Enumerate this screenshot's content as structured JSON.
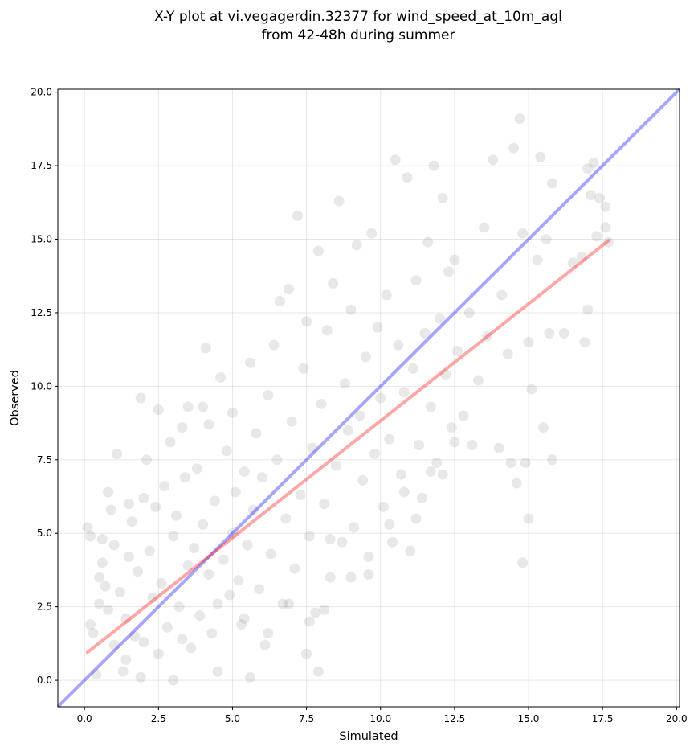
{
  "chart_data": {
    "type": "scatter",
    "title": "X-Y plot at vi.vegagerdin.32377 for wind_speed_at_10m_agl",
    "subtitle": "from 42-48h during summer",
    "xlabel": "Simulated",
    "ylabel": "Observed",
    "xlim": [
      -0.9,
      20.1
    ],
    "ylim": [
      -0.9,
      20.1
    ],
    "xticks": [
      "0.0",
      "2.5",
      "5.0",
      "7.5",
      "10.0",
      "12.5",
      "15.0",
      "17.5",
      "20.0"
    ],
    "yticks": [
      "0.0",
      "2.5",
      "5.0",
      "7.5",
      "10.0",
      "12.5",
      "15.0",
      "17.5",
      "20.0"
    ],
    "grid": true,
    "point_color": "#808080",
    "identity_line": {
      "color": "#0000ff",
      "from": [
        -0.9,
        -0.9
      ],
      "to": [
        20.1,
        20.1
      ]
    },
    "fit_line": {
      "color": "#ff0000",
      "from": [
        0.1,
        0.95
      ],
      "to": [
        17.7,
        14.95
      ]
    },
    "points": [
      [
        0.1,
        5.2
      ],
      [
        0.2,
        4.9
      ],
      [
        0.2,
        1.9
      ],
      [
        0.3,
        1.6
      ],
      [
        0.4,
        0.2
      ],
      [
        0.5,
        2.6
      ],
      [
        0.6,
        4.8
      ],
      [
        0.7,
        3.2
      ],
      [
        0.8,
        6.4
      ],
      [
        0.9,
        5.8
      ],
      [
        0.5,
        3.5
      ],
      [
        0.6,
        4.0
      ],
      [
        0.8,
        2.4
      ],
      [
        1.0,
        4.6
      ],
      [
        1.0,
        1.2
      ],
      [
        1.1,
        7.7
      ],
      [
        1.2,
        3.0
      ],
      [
        1.3,
        0.3
      ],
      [
        1.4,
        2.1
      ],
      [
        1.5,
        6.0
      ],
      [
        1.5,
        4.2
      ],
      [
        1.6,
        5.4
      ],
      [
        1.7,
        1.5
      ],
      [
        1.8,
        3.7
      ],
      [
        1.9,
        9.6
      ],
      [
        1.9,
        0.1
      ],
      [
        2.0,
        6.2
      ],
      [
        2.1,
        7.5
      ],
      [
        2.2,
        4.4
      ],
      [
        2.3,
        2.8
      ],
      [
        2.4,
        5.9
      ],
      [
        2.5,
        9.2
      ],
      [
        2.5,
        0.9
      ],
      [
        2.6,
        3.3
      ],
      [
        2.7,
        6.6
      ],
      [
        2.8,
        1.8
      ],
      [
        2.9,
        8.1
      ],
      [
        3.0,
        4.9
      ],
      [
        3.0,
        0.0
      ],
      [
        3.1,
        5.6
      ],
      [
        3.2,
        2.5
      ],
      [
        3.3,
        8.6
      ],
      [
        3.4,
        6.9
      ],
      [
        3.5,
        3.9
      ],
      [
        3.5,
        9.3
      ],
      [
        3.6,
        1.1
      ],
      [
        3.7,
        4.5
      ],
      [
        3.8,
        7.2
      ],
      [
        3.9,
        2.2
      ],
      [
        4.0,
        9.3
      ],
      [
        4.0,
        5.3
      ],
      [
        4.1,
        11.3
      ],
      [
        4.2,
        3.6
      ],
      [
        4.2,
        8.7
      ],
      [
        4.3,
        1.6
      ],
      [
        4.4,
        6.1
      ],
      [
        4.5,
        0.3
      ],
      [
        4.6,
        10.3
      ],
      [
        4.7,
        4.1
      ],
      [
        4.8,
        7.8
      ],
      [
        4.9,
        2.9
      ],
      [
        5.0,
        5.0
      ],
      [
        5.0,
        9.1
      ],
      [
        5.1,
        6.4
      ],
      [
        5.2,
        3.4
      ],
      [
        5.3,
        1.9
      ],
      [
        5.4,
        7.1
      ],
      [
        5.5,
        4.6
      ],
      [
        5.6,
        0.1
      ],
      [
        5.6,
        10.8
      ],
      [
        5.7,
        5.8
      ],
      [
        5.8,
        8.4
      ],
      [
        5.9,
        3.1
      ],
      [
        6.0,
        6.9
      ],
      [
        6.1,
        1.2
      ],
      [
        6.2,
        9.7
      ],
      [
        6.3,
        4.3
      ],
      [
        6.4,
        11.4
      ],
      [
        6.5,
        7.5
      ],
      [
        6.6,
        12.9
      ],
      [
        6.7,
        2.6
      ],
      [
        6.8,
        5.5
      ],
      [
        6.9,
        13.3
      ],
      [
        7.0,
        8.8
      ],
      [
        7.1,
        3.8
      ],
      [
        7.2,
        15.8
      ],
      [
        7.3,
        6.3
      ],
      [
        7.4,
        10.6
      ],
      [
        7.5,
        0.9
      ],
      [
        7.5,
        12.2
      ],
      [
        7.6,
        4.9
      ],
      [
        7.7,
        7.9
      ],
      [
        7.8,
        2.3
      ],
      [
        7.9,
        14.6
      ],
      [
        7.9,
        0.3
      ],
      [
        8.0,
        9.4
      ],
      [
        8.1,
        6.0
      ],
      [
        8.2,
        11.9
      ],
      [
        8.3,
        3.5
      ],
      [
        8.4,
        13.5
      ],
      [
        8.5,
        7.3
      ],
      [
        8.6,
        16.3
      ],
      [
        8.7,
        4.7
      ],
      [
        8.8,
        10.1
      ],
      [
        8.9,
        8.5
      ],
      [
        9.0,
        12.6
      ],
      [
        9.1,
        5.2
      ],
      [
        9.2,
        14.8
      ],
      [
        9.3,
        9.0
      ],
      [
        9.4,
        6.8
      ],
      [
        9.5,
        11.0
      ],
      [
        9.6,
        3.6
      ],
      [
        9.7,
        15.2
      ],
      [
        9.8,
        7.7
      ],
      [
        9.9,
        12.0
      ],
      [
        10.0,
        9.6
      ],
      [
        10.1,
        5.9
      ],
      [
        10.2,
        13.1
      ],
      [
        10.3,
        8.2
      ],
      [
        10.4,
        4.7
      ],
      [
        10.5,
        17.7
      ],
      [
        10.6,
        11.4
      ],
      [
        10.7,
        7.0
      ],
      [
        10.8,
        9.8
      ],
      [
        10.9,
        17.1
      ],
      [
        11.0,
        4.4
      ],
      [
        11.1,
        10.6
      ],
      [
        11.2,
        13.6
      ],
      [
        11.3,
        8.0
      ],
      [
        11.4,
        6.2
      ],
      [
        11.5,
        11.8
      ],
      [
        11.6,
        14.9
      ],
      [
        11.7,
        9.3
      ],
      [
        11.8,
        17.5
      ],
      [
        11.9,
        7.4
      ],
      [
        12.0,
        12.3
      ],
      [
        12.1,
        16.4
      ],
      [
        12.2,
        10.4
      ],
      [
        12.3,
        13.9
      ],
      [
        12.4,
        8.6
      ],
      [
        12.5,
        14.3
      ],
      [
        12.6,
        11.2
      ],
      [
        12.8,
        9.0
      ],
      [
        13.0,
        12.5
      ],
      [
        13.1,
        8.0
      ],
      [
        13.3,
        10.2
      ],
      [
        13.5,
        15.4
      ],
      [
        13.6,
        11.7
      ],
      [
        13.8,
        17.7
      ],
      [
        14.0,
        7.9
      ],
      [
        14.1,
        13.1
      ],
      [
        14.3,
        11.1
      ],
      [
        14.4,
        7.4
      ],
      [
        14.5,
        18.1
      ],
      [
        14.6,
        6.7
      ],
      [
        14.7,
        19.1
      ],
      [
        14.8,
        4.0
      ],
      [
        14.8,
        15.2
      ],
      [
        14.9,
        7.4
      ],
      [
        15.0,
        11.5
      ],
      [
        15.0,
        5.5
      ],
      [
        15.1,
        9.9
      ],
      [
        15.3,
        14.3
      ],
      [
        15.4,
        17.8
      ],
      [
        15.5,
        8.6
      ],
      [
        15.6,
        15.0
      ],
      [
        15.7,
        11.8
      ],
      [
        15.8,
        7.5
      ],
      [
        15.8,
        16.9
      ],
      [
        16.2,
        11.8
      ],
      [
        16.5,
        14.2
      ],
      [
        16.8,
        14.4
      ],
      [
        16.9,
        11.5
      ],
      [
        17.0,
        12.6
      ],
      [
        17.0,
        17.4
      ],
      [
        17.1,
        16.5
      ],
      [
        17.2,
        17.6
      ],
      [
        17.3,
        15.1
      ],
      [
        17.4,
        16.4
      ],
      [
        17.6,
        15.4
      ],
      [
        17.6,
        16.1
      ],
      [
        17.7,
        14.9
      ],
      [
        1.4,
        0.7
      ],
      [
        2.0,
        1.3
      ],
      [
        3.3,
        1.4
      ],
      [
        4.5,
        2.6
      ],
      [
        5.4,
        2.1
      ],
      [
        6.2,
        1.6
      ],
      [
        6.9,
        2.6
      ],
      [
        7.6,
        2.0
      ],
      [
        8.1,
        2.4
      ],
      [
        8.3,
        4.8
      ],
      [
        9.0,
        3.5
      ],
      [
        9.6,
        4.2
      ],
      [
        10.3,
        5.3
      ],
      [
        10.8,
        6.4
      ],
      [
        11.2,
        5.5
      ],
      [
        11.7,
        7.1
      ],
      [
        12.1,
        7.0
      ],
      [
        12.5,
        8.1
      ]
    ]
  }
}
